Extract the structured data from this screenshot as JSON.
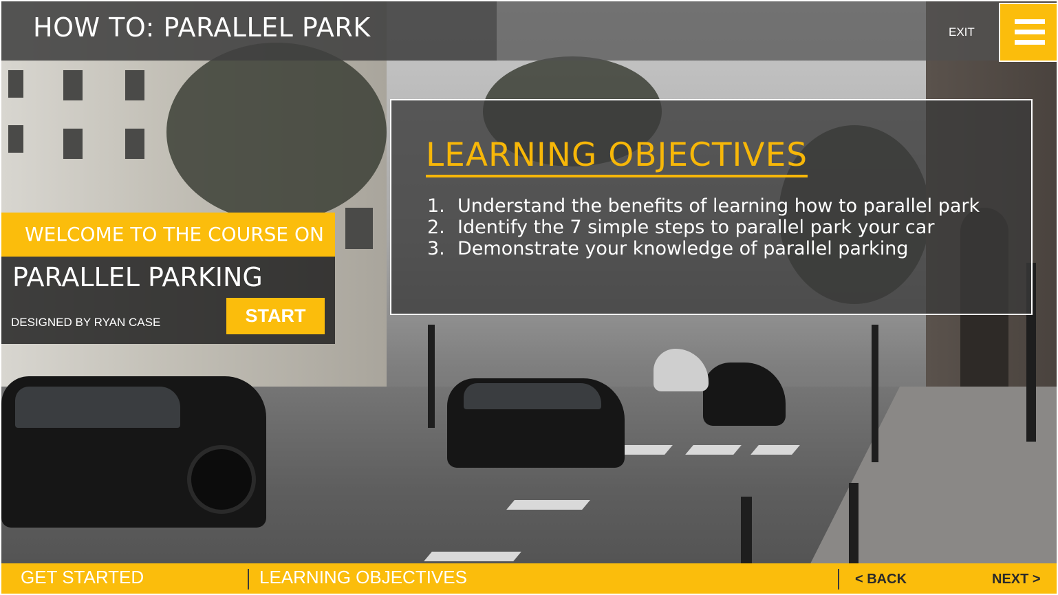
{
  "header": {
    "course_title": "HOW TO: PARALLEL PARK",
    "exit_label": "EXIT",
    "menu_icon": "hamburger-menu-icon"
  },
  "objectives": {
    "heading": "LEARNING OBJECTIVES",
    "items": [
      {
        "number": "1.",
        "text": "Understand the benefits of learning how to parallel park"
      },
      {
        "number": "2.",
        "text": "Identify the 7 simple steps to parallel park your car"
      },
      {
        "number": "3.",
        "text": "Demonstrate your knowledge of parallel parking"
      }
    ]
  },
  "welcome": {
    "intro": "WELCOME TO THE COURSE ON",
    "course_name": "PARALLEL PARKING",
    "designer": "DESIGNED BY RYAN CASE",
    "start_label": "START"
  },
  "footer": {
    "section_one": "GET STARTED",
    "section_two": "LEARNING OBJECTIVES",
    "back_label": "< BACK",
    "next_label": "NEXT >"
  },
  "colors": {
    "accent": "#fbbd0c",
    "panel": "#3a3a3a",
    "text": "#ffffff"
  }
}
